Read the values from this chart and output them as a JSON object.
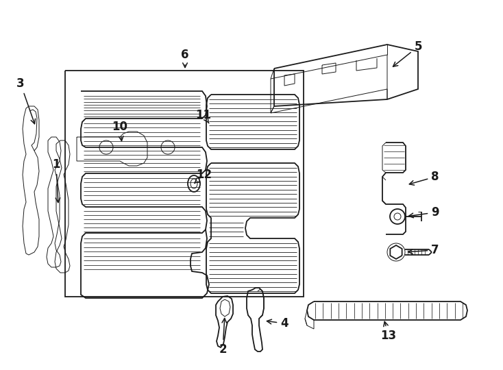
{
  "bg_color": "#ffffff",
  "line_color": "#1a1a1a",
  "lw_main": 1.3,
  "lw_thin": 0.7,
  "fig_width": 7.34,
  "fig_height": 5.4,
  "dpi": 100
}
